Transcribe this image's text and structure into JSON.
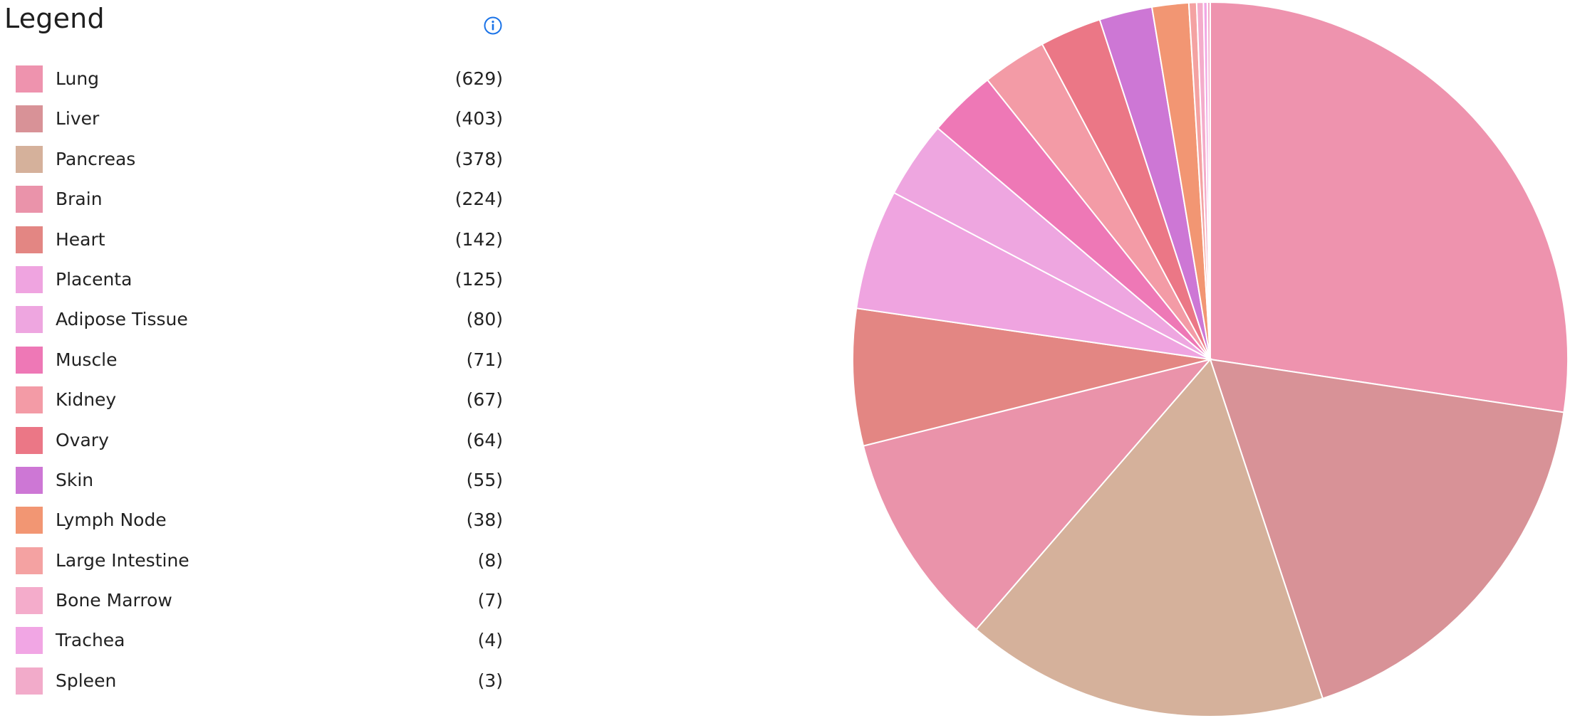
{
  "legend": {
    "title": "Legend",
    "info_icon": "info-circle-icon"
  },
  "chart_data": {
    "type": "pie",
    "title": "",
    "legend_position": "left",
    "start_angle": "12-o'clock",
    "direction": "clockwise",
    "slices": [
      {
        "label": "Lung",
        "count": "(629)",
        "value": 629,
        "color": "#EE93AE"
      },
      {
        "label": "Liver",
        "count": "(403)",
        "value": 403,
        "color": "#D89297"
      },
      {
        "label": "Pancreas",
        "count": "(378)",
        "value": 378,
        "color": "#D5B19B"
      },
      {
        "label": "Brain",
        "count": "(224)",
        "value": 224,
        "color": "#EA93AA"
      },
      {
        "label": "Heart",
        "count": "(142)",
        "value": 142,
        "color": "#E38683"
      },
      {
        "label": "Placenta",
        "count": "(125)",
        "value": 125,
        "color": "#EFA4E0"
      },
      {
        "label": "Adipose Tissue",
        "count": "(80)",
        "value": 80,
        "color": "#EEA6E0"
      },
      {
        "label": "Muscle",
        "count": "(71)",
        "value": 71,
        "color": "#EE78B6"
      },
      {
        "label": "Kidney",
        "count": "(67)",
        "value": 67,
        "color": "#F39BA6"
      },
      {
        "label": "Ovary",
        "count": "(64)",
        "value": 64,
        "color": "#EB7786"
      },
      {
        "label": "Skin",
        "count": "(55)",
        "value": 55,
        "color": "#CD77D5"
      },
      {
        "label": "Lymph Node",
        "count": "(38)",
        "value": 38,
        "color": "#F29673"
      },
      {
        "label": "Large Intestine",
        "count": "(8)",
        "value": 8,
        "color": "#F4A2A2"
      },
      {
        "label": "Bone Marrow",
        "count": "(7)",
        "value": 7,
        "color": "#F4ACCB"
      },
      {
        "label": "Trachea",
        "count": "(4)",
        "value": 4,
        "color": "#F1A6E4"
      },
      {
        "label": "Spleen",
        "count": "(3)",
        "value": 3,
        "color": "#F2ABCA"
      }
    ]
  }
}
